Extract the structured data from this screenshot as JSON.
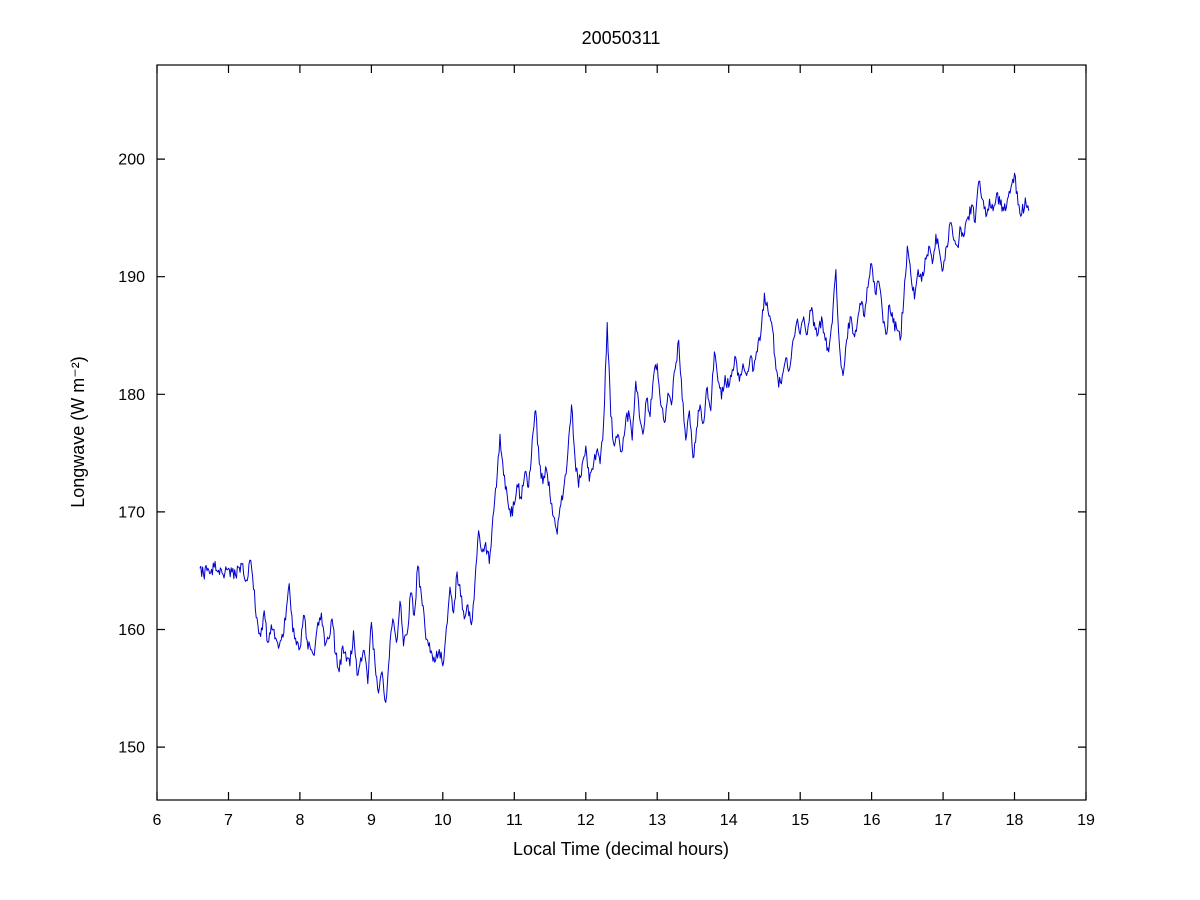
{
  "figure": {
    "title": "20050311",
    "xlabel": "Local Time (decimal hours)",
    "ylabel": "Longwave (W m⁻²)"
  },
  "chart_data": {
    "type": "line",
    "title": "20050311",
    "xlabel": "Local Time (decimal hours)",
    "ylabel": "Longwave (W m^-2)",
    "xlim": [
      6,
      19
    ],
    "ylim": [
      145.5,
      208
    ],
    "xticks": [
      6,
      7,
      8,
      9,
      10,
      11,
      12,
      13,
      14,
      15,
      16,
      17,
      18,
      19
    ],
    "yticks": [
      150,
      160,
      170,
      180,
      190,
      200
    ],
    "grid": false,
    "legend": null,
    "background": "#ffffff",
    "line_color": "#0000cd",
    "noise_amplitude": 0.6,
    "series": [
      {
        "name": "longwave",
        "points": [
          [
            6.6,
            165.2
          ],
          [
            6.65,
            164.7
          ],
          [
            6.7,
            165.0
          ],
          [
            6.75,
            164.8
          ],
          [
            6.8,
            165.3
          ],
          [
            6.85,
            164.9
          ],
          [
            6.9,
            165.1
          ],
          [
            6.95,
            164.8
          ],
          [
            7.0,
            165.2
          ],
          [
            7.05,
            164.9
          ],
          [
            7.1,
            164.6
          ],
          [
            7.15,
            165.3
          ],
          [
            7.2,
            165.6
          ],
          [
            7.25,
            164.2
          ],
          [
            7.3,
            165.9
          ],
          [
            7.35,
            163.4
          ],
          [
            7.4,
            161.0
          ],
          [
            7.45,
            159.4
          ],
          [
            7.5,
            161.6
          ],
          [
            7.55,
            158.9
          ],
          [
            7.6,
            160.4
          ],
          [
            7.65,
            159.2
          ],
          [
            7.7,
            158.4
          ],
          [
            7.75,
            159.6
          ],
          [
            7.8,
            160.8
          ],
          [
            7.85,
            163.9
          ],
          [
            7.9,
            159.8
          ],
          [
            7.95,
            158.7
          ],
          [
            8.0,
            158.4
          ],
          [
            8.05,
            161.2
          ],
          [
            8.1,
            159.1
          ],
          [
            8.15,
            158.3
          ],
          [
            8.2,
            157.8
          ],
          [
            8.25,
            160.6
          ],
          [
            8.3,
            161.4
          ],
          [
            8.35,
            158.6
          ],
          [
            8.4,
            159.2
          ],
          [
            8.45,
            160.9
          ],
          [
            8.5,
            157.9
          ],
          [
            8.55,
            156.4
          ],
          [
            8.6,
            158.6
          ],
          [
            8.65,
            157.3
          ],
          [
            8.7,
            156.9
          ],
          [
            8.75,
            159.9
          ],
          [
            8.8,
            156.1
          ],
          [
            8.85,
            157.6
          ],
          [
            8.9,
            158.2
          ],
          [
            8.95,
            155.4
          ],
          [
            9.0,
            160.6
          ],
          [
            9.05,
            157.1
          ],
          [
            9.1,
            154.6
          ],
          [
            9.15,
            156.4
          ],
          [
            9.2,
            153.8
          ],
          [
            9.25,
            157.6
          ],
          [
            9.3,
            160.9
          ],
          [
            9.35,
            158.9
          ],
          [
            9.4,
            162.4
          ],
          [
            9.45,
            158.6
          ],
          [
            9.5,
            159.6
          ],
          [
            9.55,
            163.1
          ],
          [
            9.6,
            161.2
          ],
          [
            9.65,
            165.4
          ],
          [
            9.7,
            162.9
          ],
          [
            9.75,
            160.1
          ],
          [
            9.8,
            158.6
          ],
          [
            9.85,
            157.9
          ],
          [
            9.9,
            157.4
          ],
          [
            9.95,
            158.3
          ],
          [
            10.0,
            156.9
          ],
          [
            10.05,
            160.2
          ],
          [
            10.1,
            163.6
          ],
          [
            10.15,
            161.4
          ],
          [
            10.2,
            164.9
          ],
          [
            10.25,
            162.8
          ],
          [
            10.3,
            160.9
          ],
          [
            10.35,
            162.1
          ],
          [
            10.4,
            160.4
          ],
          [
            10.45,
            164.1
          ],
          [
            10.5,
            168.4
          ],
          [
            10.55,
            166.6
          ],
          [
            10.6,
            167.4
          ],
          [
            10.65,
            165.6
          ],
          [
            10.7,
            169.6
          ],
          [
            10.75,
            172.1
          ],
          [
            10.8,
            176.6
          ],
          [
            10.85,
            173.1
          ],
          [
            10.9,
            171.4
          ],
          [
            10.95,
            169.6
          ],
          [
            11.0,
            170.6
          ],
          [
            11.05,
            172.1
          ],
          [
            11.1,
            171.1
          ],
          [
            11.15,
            173.4
          ],
          [
            11.2,
            172.1
          ],
          [
            11.25,
            176.1
          ],
          [
            11.3,
            178.6
          ],
          [
            11.35,
            174.1
          ],
          [
            11.4,
            172.4
          ],
          [
            11.45,
            173.6
          ],
          [
            11.5,
            171.4
          ],
          [
            11.55,
            169.6
          ],
          [
            11.6,
            168.1
          ],
          [
            11.65,
            170.6
          ],
          [
            11.7,
            172.4
          ],
          [
            11.75,
            175.1
          ],
          [
            11.8,
            179.1
          ],
          [
            11.85,
            174.6
          ],
          [
            11.9,
            172.1
          ],
          [
            11.95,
            174.1
          ],
          [
            12.0,
            175.6
          ],
          [
            12.05,
            172.6
          ],
          [
            12.1,
            173.6
          ],
          [
            12.15,
            175.1
          ],
          [
            12.2,
            174.1
          ],
          [
            12.25,
            177.6
          ],
          [
            12.3,
            186.1
          ],
          [
            12.35,
            178.1
          ],
          [
            12.4,
            175.6
          ],
          [
            12.45,
            176.6
          ],
          [
            12.5,
            175.1
          ],
          [
            12.55,
            177.1
          ],
          [
            12.6,
            178.6
          ],
          [
            12.65,
            176.1
          ],
          [
            12.7,
            181.1
          ],
          [
            12.75,
            178.1
          ],
          [
            12.8,
            176.6
          ],
          [
            12.85,
            179.6
          ],
          [
            12.9,
            178.1
          ],
          [
            12.95,
            181.6
          ],
          [
            13.0,
            182.6
          ],
          [
            13.05,
            179.1
          ],
          [
            13.1,
            177.6
          ],
          [
            13.15,
            180.1
          ],
          [
            13.2,
            179.1
          ],
          [
            13.25,
            182.1
          ],
          [
            13.3,
            184.6
          ],
          [
            13.35,
            179.6
          ],
          [
            13.4,
            176.1
          ],
          [
            13.45,
            178.6
          ],
          [
            13.5,
            174.6
          ],
          [
            13.55,
            177.1
          ],
          [
            13.6,
            179.1
          ],
          [
            13.65,
            177.6
          ],
          [
            13.7,
            180.6
          ],
          [
            13.75,
            178.6
          ],
          [
            13.8,
            183.6
          ],
          [
            13.85,
            181.1
          ],
          [
            13.9,
            179.6
          ],
          [
            13.95,
            181.6
          ],
          [
            14.0,
            180.6
          ],
          [
            14.05,
            182.1
          ],
          [
            14.1,
            183.1
          ],
          [
            14.15,
            181.1
          ],
          [
            14.2,
            182.6
          ],
          [
            14.25,
            181.6
          ],
          [
            14.3,
            183.1
          ],
          [
            14.35,
            182.1
          ],
          [
            14.4,
            183.6
          ],
          [
            14.45,
            185.1
          ],
          [
            14.5,
            188.6
          ],
          [
            14.55,
            187.1
          ],
          [
            14.6,
            186.1
          ],
          [
            14.65,
            183.1
          ],
          [
            14.7,
            180.6
          ],
          [
            14.75,
            181.6
          ],
          [
            14.8,
            183.1
          ],
          [
            14.85,
            182.1
          ],
          [
            14.9,
            184.6
          ],
          [
            14.95,
            186.1
          ],
          [
            15.0,
            185.1
          ],
          [
            15.05,
            186.6
          ],
          [
            15.1,
            185.1
          ],
          [
            15.15,
            187.1
          ],
          [
            15.2,
            186.1
          ],
          [
            15.25,
            185.1
          ],
          [
            15.3,
            186.6
          ],
          [
            15.35,
            184.6
          ],
          [
            15.4,
            183.6
          ],
          [
            15.45,
            186.1
          ],
          [
            15.5,
            190.6
          ],
          [
            15.55,
            184.1
          ],
          [
            15.6,
            181.6
          ],
          [
            15.65,
            184.6
          ],
          [
            15.7,
            186.6
          ],
          [
            15.75,
            185.1
          ],
          [
            15.8,
            186.1
          ],
          [
            15.85,
            187.6
          ],
          [
            15.9,
            186.6
          ],
          [
            15.95,
            189.1
          ],
          [
            16.0,
            191.1
          ],
          [
            16.05,
            188.6
          ],
          [
            16.1,
            189.6
          ],
          [
            16.15,
            187.1
          ],
          [
            16.2,
            185.1
          ],
          [
            16.25,
            187.6
          ],
          [
            16.3,
            186.1
          ],
          [
            16.35,
            185.6
          ],
          [
            16.4,
            184.6
          ],
          [
            16.45,
            188.1
          ],
          [
            16.5,
            192.6
          ],
          [
            16.55,
            190.1
          ],
          [
            16.6,
            188.1
          ],
          [
            16.65,
            190.6
          ],
          [
            16.7,
            189.6
          ],
          [
            16.75,
            191.6
          ],
          [
            16.8,
            192.6
          ],
          [
            16.85,
            191.1
          ],
          [
            16.9,
            193.6
          ],
          [
            16.95,
            192.1
          ],
          [
            17.0,
            190.6
          ],
          [
            17.05,
            192.6
          ],
          [
            17.1,
            194.6
          ],
          [
            17.15,
            193.1
          ],
          [
            17.2,
            192.6
          ],
          [
            17.25,
            194.1
          ],
          [
            17.3,
            193.6
          ],
          [
            17.35,
            195.1
          ],
          [
            17.4,
            196.1
          ],
          [
            17.45,
            194.6
          ],
          [
            17.5,
            198.1
          ],
          [
            17.55,
            196.6
          ],
          [
            17.6,
            195.1
          ],
          [
            17.65,
            196.6
          ],
          [
            17.7,
            195.6
          ],
          [
            17.75,
            197.1
          ],
          [
            17.8,
            196.1
          ],
          [
            17.85,
            195.6
          ],
          [
            17.9,
            196.6
          ],
          [
            17.95,
            197.6
          ],
          [
            18.0,
            198.8
          ],
          [
            18.05,
            196.1
          ],
          [
            18.1,
            195.3
          ],
          [
            18.15,
            196.7
          ],
          [
            18.2,
            195.6
          ]
        ]
      }
    ]
  }
}
